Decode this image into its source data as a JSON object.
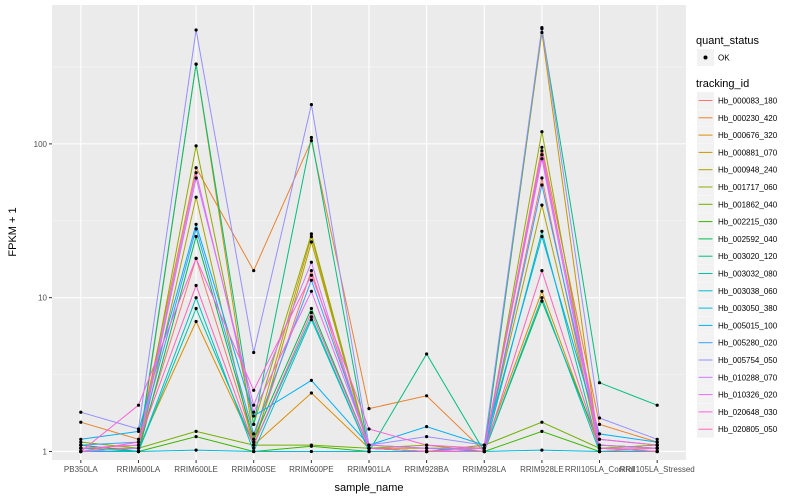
{
  "chart_data": {
    "type": "line",
    "xlabel": "sample_name",
    "ylabel": "FPKM + 1",
    "y_scale": "log10",
    "ylim": [
      0.88,
      800
    ],
    "y_ticks": [
      1,
      10,
      100
    ],
    "y_tick_labels": [
      "1",
      "10",
      "100"
    ],
    "grid": true,
    "legend_position": "right",
    "categories": [
      "PB350LA",
      "RRIM600LA",
      "RRIM600LE",
      "RRIM600SE",
      "RRIM600PE",
      "RRIM901LA",
      "RRIM928BA",
      "RRIM928LA",
      "RRIM928LE",
      "RRII105LA_Control",
      "RRII105LA_Stressed"
    ],
    "quant_legend": {
      "title": "quant_status",
      "entries": [
        "OK"
      ]
    },
    "tracking_legend_title": "tracking_id",
    "series": [
      {
        "name": "Hb_000083_180",
        "color": "#F8766D",
        "values": [
          1.05,
          1.1,
          18,
          1.15,
          15,
          1.05,
          1.0,
          1.0,
          60,
          1.0,
          1.05
        ]
      },
      {
        "name": "Hb_000230_420",
        "color": "#EA8331",
        "values": [
          1.55,
          1.2,
          70,
          15,
          105,
          1.9,
          2.3,
          1.0,
          95,
          1.5,
          1.15
        ]
      },
      {
        "name": "Hb_000676_320",
        "color": "#DB8E00",
        "values": [
          1.05,
          1.05,
          7,
          1.1,
          2.4,
          1.05,
          1.05,
          1.05,
          11,
          1.05,
          1.0
        ]
      },
      {
        "name": "Hb_000881_070",
        "color": "#C79800",
        "values": [
          1.0,
          1.0,
          330,
          1.2,
          25,
          1.0,
          1.0,
          1.0,
          530,
          1.0,
          1.0
        ]
      },
      {
        "name": "Hb_000948_240",
        "color": "#AFA100",
        "values": [
          1.1,
          1.0,
          45,
          1.05,
          23,
          1.05,
          1.0,
          1.05,
          40,
          1.1,
          1.05
        ]
      },
      {
        "name": "Hb_001717_060",
        "color": "#93AA00",
        "values": [
          1.0,
          1.0,
          97,
          1.5,
          26,
          1.05,
          1.1,
          1.0,
          120,
          1.05,
          1.1
        ]
      },
      {
        "name": "Hb_001862_040",
        "color": "#6FB000",
        "values": [
          1.15,
          1.05,
          1.35,
          1.1,
          1.1,
          1.05,
          1.0,
          1.1,
          1.55,
          1.05,
          1.0
        ]
      },
      {
        "name": "Hb_002215_030",
        "color": "#39B600",
        "values": [
          1.0,
          1.0,
          1.25,
          1.0,
          1.08,
          1.0,
          1.0,
          1.0,
          1.35,
          1.0,
          1.0
        ]
      },
      {
        "name": "Hb_002592_040",
        "color": "#00BB4E",
        "values": [
          1.1,
          1.0,
          25,
          1.2,
          8.5,
          1.05,
          1.0,
          1.0,
          9.5,
          1.1,
          1.05
        ]
      },
      {
        "name": "Hb_003020_120",
        "color": "#00BF7D",
        "values": [
          1.0,
          1.05,
          330,
          1.5,
          110,
          1.0,
          4.3,
          1.0,
          560,
          2.8,
          2.0
        ]
      },
      {
        "name": "Hb_003032_080",
        "color": "#00C1A3",
        "values": [
          1.05,
          1.0,
          8.5,
          1.1,
          7.5,
          1.0,
          1.0,
          1.0,
          27,
          1.0,
          1.0
        ]
      },
      {
        "name": "Hb_003038_060",
        "color": "#00BFC4",
        "values": [
          1.0,
          1.0,
          10,
          1.0,
          7.2,
          1.0,
          1.0,
          1.0,
          10,
          1.0,
          1.0
        ]
      },
      {
        "name": "Hb_003050_380",
        "color": "#00BAE0",
        "values": [
          1.0,
          1.0,
          1.02,
          1.0,
          1.0,
          1.0,
          1.0,
          1.0,
          1.02,
          1.0,
          1.0
        ]
      },
      {
        "name": "Hb_005015_100",
        "color": "#00B0F6",
        "values": [
          1.2,
          1.35,
          30,
          1.7,
          2.9,
          1.1,
          1.45,
          1.1,
          25,
          1.3,
          1.15
        ]
      },
      {
        "name": "Hb_005280_020",
        "color": "#35A2FF",
        "values": [
          1.1,
          1.15,
          28,
          1.3,
          13,
          1.1,
          1.05,
          1.0,
          54,
          1.2,
          1.1
        ]
      },
      {
        "name": "Hb_005754_050",
        "color": "#9590FF",
        "values": [
          1.8,
          1.4,
          550,
          4.4,
          180,
          1.1,
          1.25,
          1.1,
          570,
          1.65,
          1.2
        ]
      },
      {
        "name": "Hb_010288_070",
        "color": "#C77CFF",
        "values": [
          1.0,
          1.05,
          60,
          2.0,
          17,
          1.05,
          1.0,
          1.05,
          80,
          1.05,
          1.05
        ]
      },
      {
        "name": "Hb_010326_020",
        "color": "#E76BF3",
        "values": [
          1.05,
          1.1,
          65,
          1.8,
          11,
          1.1,
          1.05,
          1.05,
          90,
          1.1,
          1.05
        ]
      },
      {
        "name": "Hb_020648_030",
        "color": "#FA62DB",
        "values": [
          1.0,
          2.0,
          18,
          2.5,
          14,
          1.4,
          1.1,
          1.05,
          85,
          1.2,
          1.1
        ]
      },
      {
        "name": "Hb_020805_050",
        "color": "#FF62BC",
        "values": [
          1.0,
          1.15,
          12,
          1.1,
          8,
          1.05,
          1.0,
          1.0,
          15,
          1.05,
          1.0
        ]
      }
    ]
  }
}
